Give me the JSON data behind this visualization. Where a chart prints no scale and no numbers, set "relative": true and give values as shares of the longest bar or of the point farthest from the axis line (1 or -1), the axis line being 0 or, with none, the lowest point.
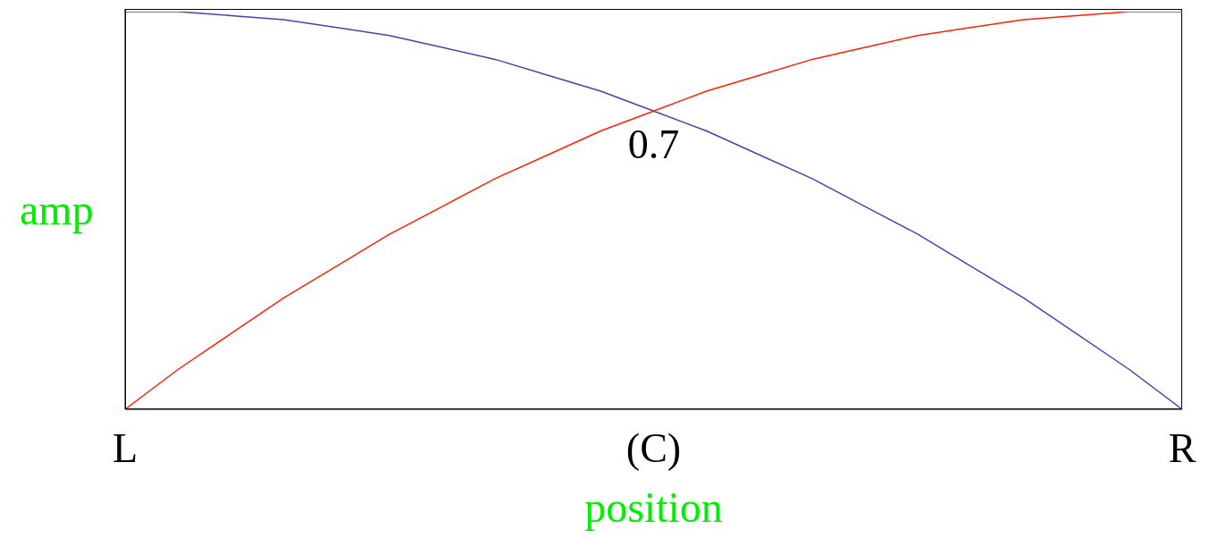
{
  "chart_data": {
    "type": "line",
    "relative": true,
    "xlabel": "position",
    "ylabel": "amp",
    "categories": [
      "L",
      null,
      null,
      null,
      null,
      null,
      null,
      null,
      null,
      null,
      "(C)",
      null,
      null,
      null,
      null,
      null,
      null,
      null,
      null,
      null,
      "R"
    ],
    "series": [
      {
        "color": "#4444b0",
        "values": [
          1,
          1,
          0.99,
          0.98,
          0.96,
          0.94,
          0.91,
          0.88,
          0.84,
          0.8,
          0.75,
          0.7,
          0.64,
          0.58,
          0.51,
          0.44,
          0.36,
          0.28,
          0.19,
          0.1,
          0
        ]
      },
      {
        "color": "#ff2200",
        "values": [
          0,
          0.1,
          0.19,
          0.28,
          0.36,
          0.44,
          0.51,
          0.58,
          0.64,
          0.7,
          0.75,
          0.8,
          0.84,
          0.88,
          0.91,
          0.94,
          0.96,
          0.98,
          0.99,
          1,
          1
        ]
      }
    ],
    "annotations": [
      {
        "text": "0.7",
        "x": "(C)",
        "y": 0.75
      }
    ]
  }
}
